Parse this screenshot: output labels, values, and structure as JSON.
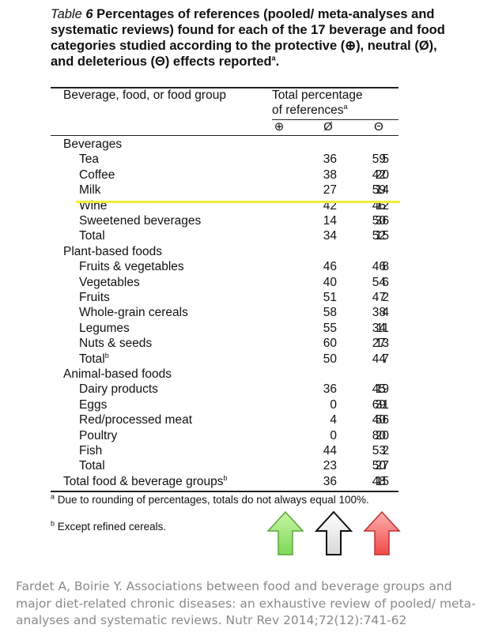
{
  "caption": {
    "label": "Table",
    "number": "6",
    "text": "Percentages of references (pooled/ meta-analyses and systematic reviews) found for each of the 17 beverage and food categories studied according to the protective (⊕), neutral (Ø), and deleterious (Θ) effects reported",
    "superscript": "a",
    "end": "."
  },
  "header": {
    "col_label": "Beverage, food, or food group",
    "total_label_line1": "Total percentage",
    "total_label_line2": "of references",
    "total_sup": "a",
    "symbols": [
      "⊕",
      "Ø",
      "Θ"
    ]
  },
  "groups": {
    "beverages": "Beverages",
    "plant": "Plant-based foods",
    "animal": "Animal-based foods"
  },
  "rows": [
    {
      "label": "Tea",
      "v": [
        "36",
        "59",
        "5"
      ]
    },
    {
      "label": "Coffee",
      "v": [
        "38",
        "42",
        "20"
      ]
    },
    {
      "label": "Milk",
      "v": [
        "27",
        "59",
        "14"
      ]
    },
    {
      "label": "Wine",
      "v": [
        "42",
        "46",
        "12"
      ]
    },
    {
      "label": "Sweetened beverages",
      "v": [
        "14",
        "50",
        "36"
      ]
    },
    {
      "label": "Total",
      "v": [
        "34",
        "52",
        "15"
      ]
    },
    {
      "label": "Fruits & vegetables",
      "v": [
        "46",
        "46",
        "8"
      ]
    },
    {
      "label": "Vegetables",
      "v": [
        "40",
        "54",
        "6"
      ]
    },
    {
      "label": "Fruits",
      "v": [
        "51",
        "47",
        "2"
      ]
    },
    {
      "label": "Whole-grain cereals",
      "v": [
        "58",
        "38",
        "4"
      ]
    },
    {
      "label": "Legumes",
      "v": [
        "55",
        "34",
        "11"
      ]
    },
    {
      "label": "Nuts & seeds",
      "v": [
        "60",
        "27",
        "13"
      ]
    },
    {
      "label": "Total",
      "sup": "b",
      "v": [
        "50",
        "44",
        "7"
      ]
    },
    {
      "label": "Dairy products",
      "v": [
        "36",
        "45",
        "19"
      ]
    },
    {
      "label": "Eggs",
      "v": [
        "0",
        "69",
        "31"
      ]
    },
    {
      "label": "Red/processed meat",
      "v": [
        "4",
        "40",
        "56"
      ]
    },
    {
      "label": "Poultry",
      "v": [
        "0",
        "80",
        "20"
      ]
    },
    {
      "label": "Fish",
      "v": [
        "44",
        "53",
        "2"
      ]
    },
    {
      "label": "Total",
      "v": [
        "23",
        "50",
        "27"
      ]
    },
    {
      "label": "Total food & beverage groups",
      "sup": "b",
      "v": [
        "36",
        "48",
        "15"
      ]
    }
  ],
  "footnotes": {
    "a_mark": "a",
    "a_text": "Due to rounding of percentages, totals do not always equal 100%.",
    "b_mark": "b",
    "b_text": "Except refined cereals."
  },
  "arrows": [
    {
      "name": "protective",
      "color": "#8ee06a"
    },
    {
      "name": "neutral",
      "color": "#e6e6e6"
    },
    {
      "name": "deleterious",
      "color": "#f06060"
    }
  ],
  "highlight_color": "#f2ee3c",
  "credit": "Fardet A, Boirie Y. Associations between food and beverage groups and major diet-related chronic diseases: an exhaustive review of pooled/ meta-analyses and systematic reviews. Nutr Rev 2014;72(12):741-62"
}
